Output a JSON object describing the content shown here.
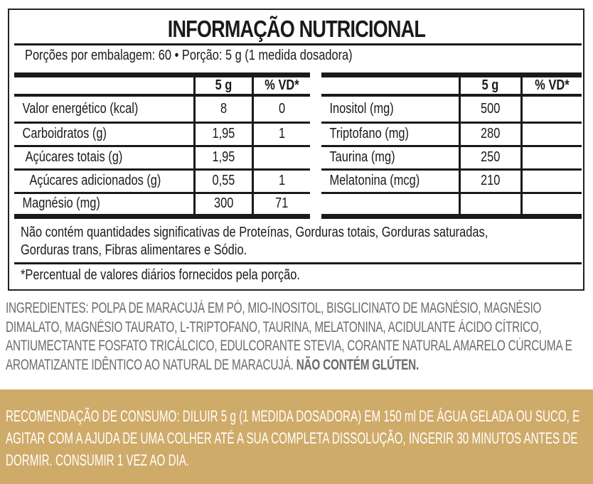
{
  "title": "INFORMAÇÃO NUTRICIONAL",
  "servings": "Porções por embalagem: 60 • Porção: 5 g (1 medida dosadora)",
  "headers": {
    "amount": "5 g",
    "vd": "% VD*"
  },
  "left_rows": [
    {
      "label": "Valor energético (kcal)",
      "amount": "8",
      "vd": "0"
    },
    {
      "label": "Carboidratos (g)",
      "amount": "1,95",
      "vd": "1"
    },
    {
      "label": " Açúcares totais (g)",
      "amount": "1,95",
      "vd": ""
    },
    {
      "label": "  Açúcares adicionados (g)",
      "amount": "0,55",
      "vd": "1"
    },
    {
      "label": "Magnésio (mg)",
      "amount": "300",
      "vd": "71"
    }
  ],
  "right_rows": [
    {
      "label": "Inositol (mg)",
      "amount": "500",
      "vd": ""
    },
    {
      "label": "Triptofano (mg)",
      "amount": "280",
      "vd": ""
    },
    {
      "label": "Taurina (mg)",
      "amount": "250",
      "vd": ""
    },
    {
      "label": "Melatonina (mcg)",
      "amount": "210",
      "vd": ""
    },
    {
      "label": "",
      "amount": "",
      "vd": ""
    }
  ],
  "note_line1": "Não contém quantidades significativas de Proteínas, Gorduras totais, Gorduras saturadas,",
  "note_line2": "Gorduras trans, Fibras alimentares e Sódio.",
  "footnote": "*Percentual de valores diários fornecidos pela porção.",
  "ingredients": {
    "lines": [
      "INGREDIENTES: POLPA DE MARACUJÁ EM PÓ, MIO-INOSITOL, BISGLICINATO DE MAGNÉSIO, MAGNÉSIO",
      "DIMALATO, MAGNÉSIO TAURATO, L-TRIPTOFANO, TAURINA, MELATONINA, ACIDULANTE ÁCIDO CÍTRICO,",
      "ANTIUMECTANTE FOSFATO TRICÁLCICO, EDULCORANTE STEVIA, CORANTE NATURAL AMARELO CÚRCUMA E",
      "AROMATIZANTE IDÊNTICO AO NATURAL DE MARACUJÁ. "
    ],
    "gluten": "NÃO CONTÉM GLÚTEN."
  },
  "recommendation": [
    "RECOMENDAÇÃO DE CONSUMO: DILUIR 5 g (1 MEDIDA DOSADORA) EM 150 ml DE ÁGUA GELADA OU SUCO, E",
    "AGITAR COM A AJUDA DE UMA COLHER ATÉ A SUA COMPLETA DISSOLUÇÃO, INGERIR 30 MINUTOS ANTES DE",
    "DORMIR. CONSUMIR 1 VEZ AO DIA."
  ],
  "colors": {
    "gold": "#cfab6a",
    "ingredients_text": "#6b6b6b"
  }
}
